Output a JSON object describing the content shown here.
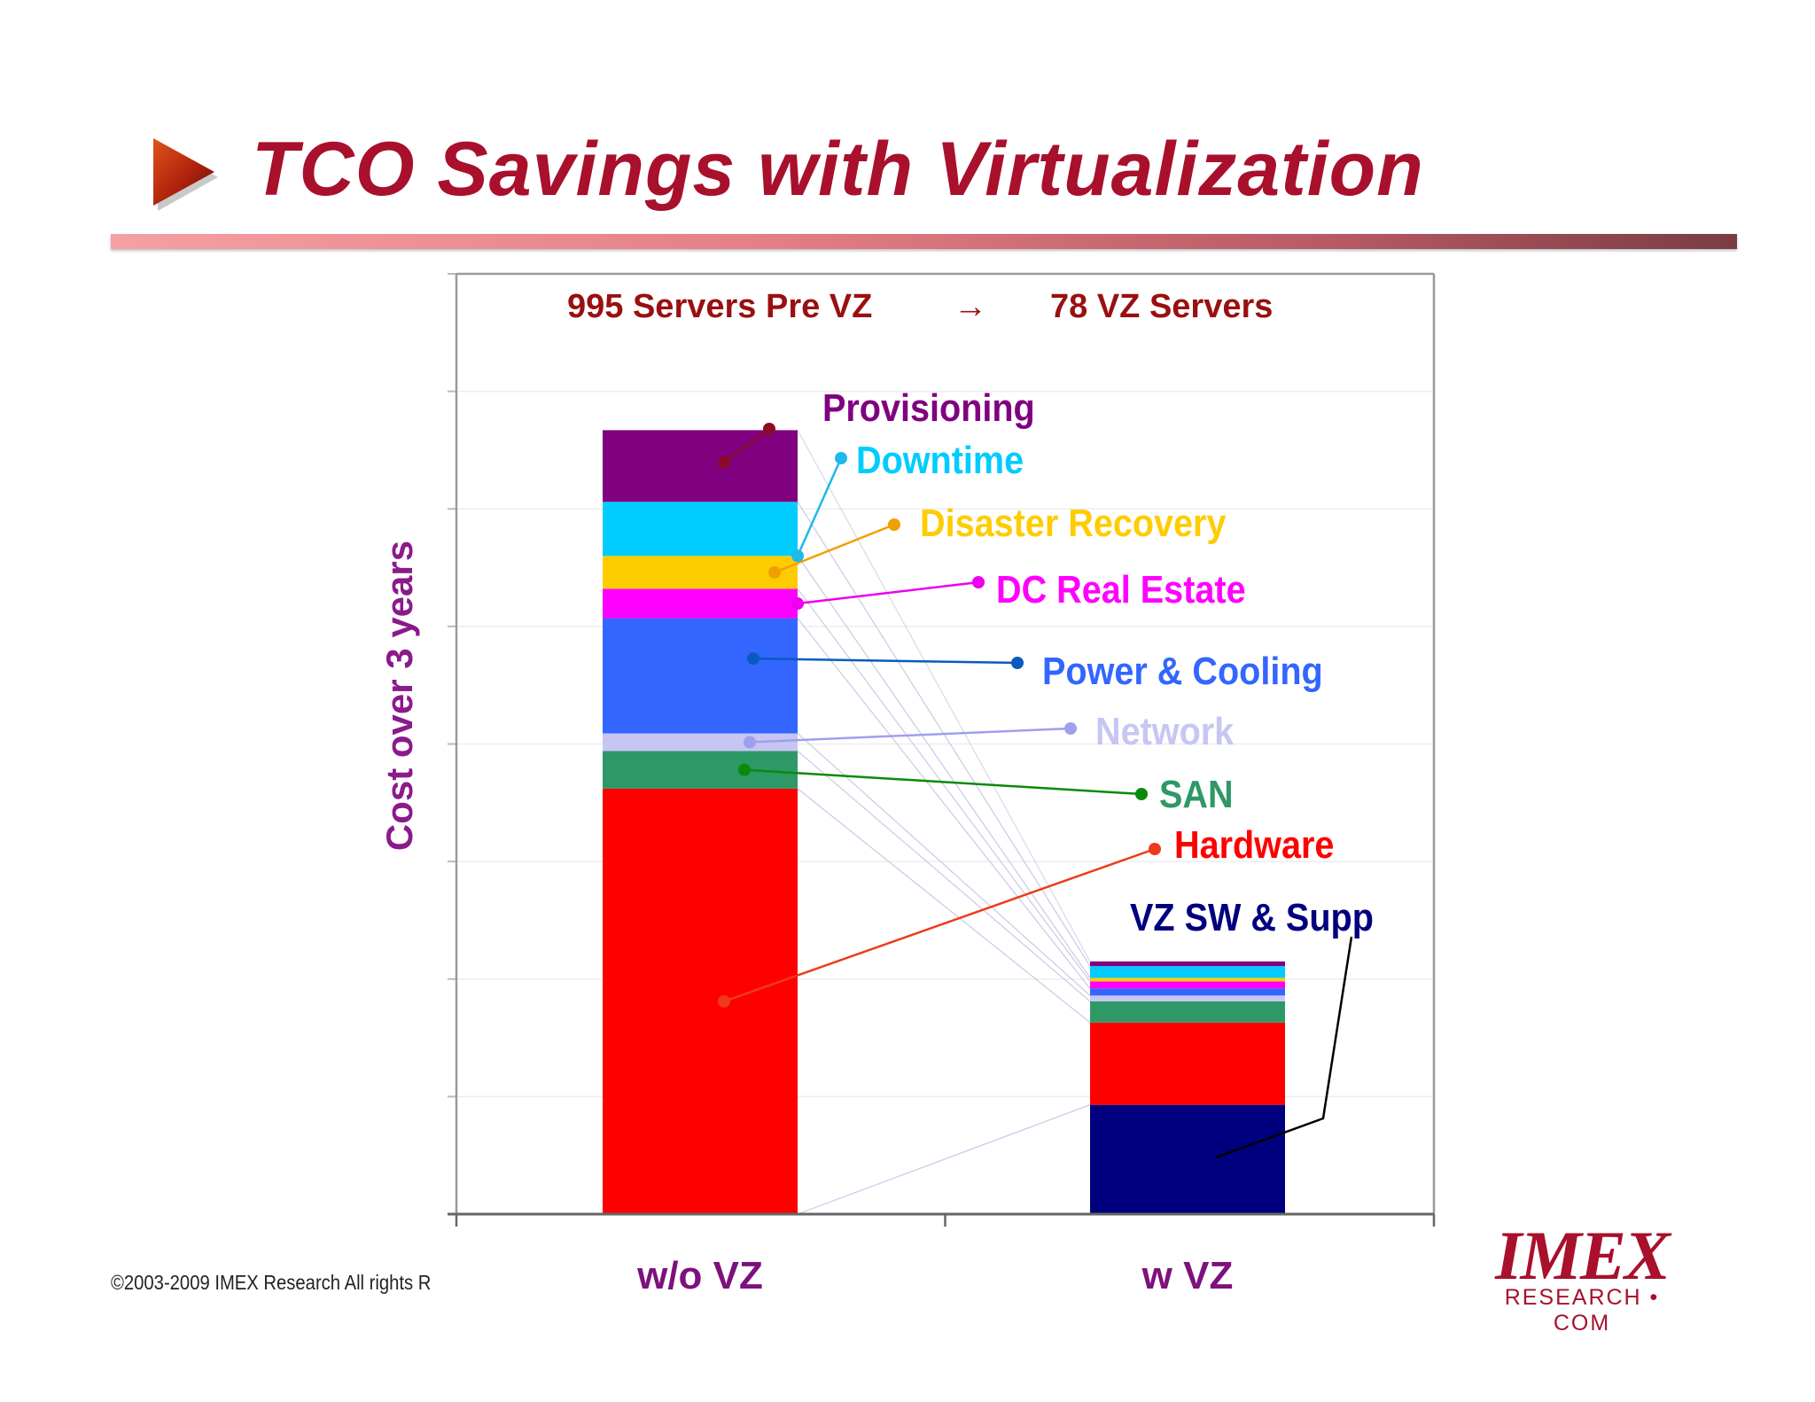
{
  "slide": {
    "title": "TCO Savings with Virtualization",
    "copyright": "©2003-2009  IMEX Research All rights R",
    "logo": {
      "word": "IMEX",
      "sub": "RESEARCH • COM"
    },
    "colors": {
      "title": "#a8102c",
      "subtitle": "#991010",
      "category": "#7d117d",
      "ylabel": "#8b1a8b"
    }
  },
  "chart_data": {
    "type": "bar",
    "stacked": true,
    "subtitle_left": "995 Servers Pre VZ",
    "subtitle_arrow": "→",
    "subtitle_right": "78 VZ Servers",
    "ylabel": "Cost over 3 years",
    "xlabel": "",
    "categories": [
      "w/o VZ",
      "w VZ"
    ],
    "ylim": [
      0,
      8
    ],
    "y_tick_step": 1,
    "y_tick_labels": false,
    "grid": true,
    "legend": "callout labels to the right of the w/o VZ bar",
    "series": [
      {
        "name": "VZ SW & Supp",
        "values": [
          0,
          0.93
        ],
        "color": "#00007f"
      },
      {
        "name": "Hardware",
        "values": [
          3.62,
          0.7
        ],
        "color": "#ff0000"
      },
      {
        "name": "SAN",
        "values": [
          0.32,
          0.18
        ],
        "color": "#2e9966"
      },
      {
        "name": "Network",
        "values": [
          0.15,
          0.05
        ],
        "color": "#c7c6f3"
      },
      {
        "name": "Power & Cooling",
        "values": [
          0.98,
          0.06
        ],
        "color": "#3366ff"
      },
      {
        "name": "DC Real Estate",
        "values": [
          0.25,
          0.06
        ],
        "color": "#ff00ff"
      },
      {
        "name": "Disaster Recovery",
        "values": [
          0.28,
          0.03
        ],
        "color": "#ffcc00"
      },
      {
        "name": "Downtime",
        "values": [
          0.46,
          0.1
        ],
        "color": "#00ccff"
      },
      {
        "name": "Provisioning",
        "values": [
          0.61,
          0.04
        ],
        "color": "#800080"
      }
    ]
  }
}
